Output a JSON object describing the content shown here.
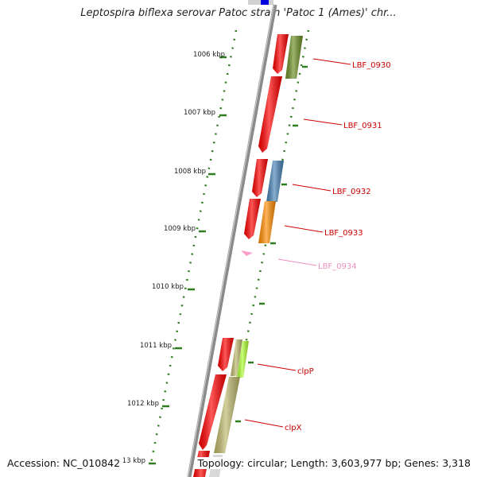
{
  "title": "Leptospira biflexa serovar Patoc strain 'Patoc 1 (Ames)' chr...",
  "footer": {
    "accession": "Accession: NC_010842",
    "summary": "Topology: circular; Length: 3,603,977 bp; Genes: 3,318"
  },
  "colors": {
    "backbone": "#8a8a8a",
    "tick_dots": "#2e7d1e",
    "label_red": "#cc0000",
    "label_pink": "#ef8fbf",
    "gene_red": "#ff0000"
  },
  "ruler": [
    {
      "label": "1006 kbp"
    },
    {
      "label": "1007 kbp"
    },
    {
      "label": "1008 kbp"
    },
    {
      "label": "1009 kbp"
    },
    {
      "label": "1010 kbp"
    },
    {
      "label": "1011 kbp"
    },
    {
      "label": "1012 kbp"
    },
    {
      "label": "1013 kbp"
    }
  ],
  "genes": [
    {
      "name": "LBF_0930",
      "color": "#6b8e23",
      "label_color": "#cc0000"
    },
    {
      "name": "LBF_0931",
      "color": "#ff0000",
      "label_color": "#cc0000"
    },
    {
      "name": "LBF_0932",
      "color": "#4682b4",
      "label_color": "#cc0000"
    },
    {
      "name": "LBF_0933",
      "color": "#ff8c00",
      "label_color": "#cc0000"
    },
    {
      "name": "LBF_0934",
      "color": "#ff9ccc",
      "label_color": "#ef8fbf"
    },
    {
      "name": "clpP",
      "color": "#adff2f",
      "label_color": "#cc0000"
    },
    {
      "name": "clpX",
      "color": "#bdb76b",
      "label_color": "#cc0000"
    }
  ]
}
